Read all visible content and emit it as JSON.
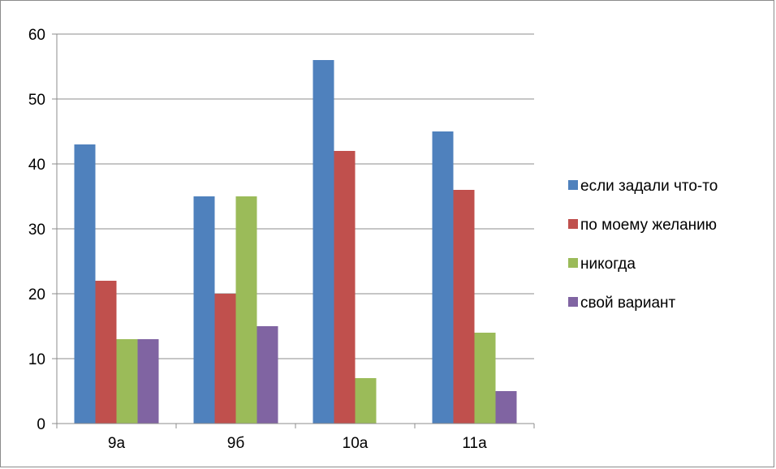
{
  "chart_data": {
    "type": "bar",
    "categories": [
      "9а",
      "9б",
      "10а",
      "11а"
    ],
    "series": [
      {
        "name": "если задали что-то",
        "color": "#4f81bd",
        "values": [
          43,
          35,
          56,
          45
        ]
      },
      {
        "name": "по моему желанию",
        "color": "#c0504d",
        "values": [
          22,
          20,
          42,
          36
        ]
      },
      {
        "name": "никогда",
        "color": "#9bbb59",
        "values": [
          13,
          35,
          7,
          14
        ]
      },
      {
        "name": "свой вариант",
        "color": "#8064a2",
        "values": [
          13,
          15,
          0,
          5
        ]
      }
    ],
    "title": "",
    "xlabel": "",
    "ylabel": "",
    "ylim": [
      0,
      60
    ],
    "yticks": [
      "0",
      "10",
      "20",
      "30",
      "40",
      "50",
      "60"
    ],
    "grid": true,
    "legend_position": "right"
  }
}
